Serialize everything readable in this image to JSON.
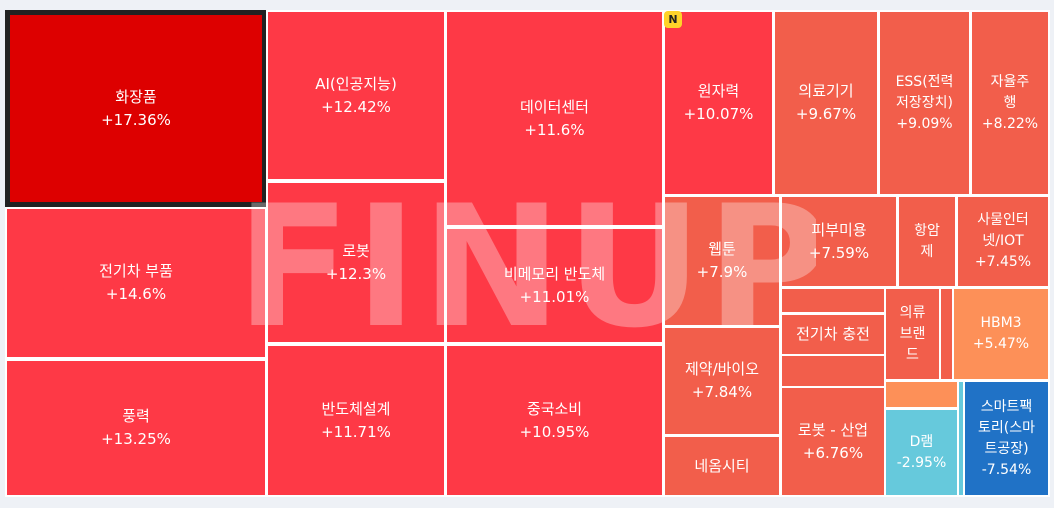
{
  "chart_data": {
    "type": "treemap",
    "colors": {
      "strong_up": "#dd0000",
      "up": "#fe3946",
      "mid_up": "#f25e4b",
      "low_up": "#fd9058",
      "light_down": "#66c9dc",
      "down": "#2072c6"
    },
    "tiles": [
      {
        "name": "화장품",
        "value": "+17.36%",
        "change": 17.36,
        "color": "strong_up",
        "selected": true
      },
      {
        "name": "전기차 부품",
        "value": "+14.6%",
        "change": 14.6,
        "color": "up"
      },
      {
        "name": "풍력",
        "value": "+13.25%",
        "change": 13.25,
        "color": "up"
      },
      {
        "name": "AI(인공지능)",
        "value": "+12.42%",
        "change": 12.42,
        "color": "up"
      },
      {
        "name": "로봇",
        "value": "+12.3%",
        "change": 12.3,
        "color": "up"
      },
      {
        "name": "반도체설계",
        "value": "+11.71%",
        "change": 11.71,
        "color": "up"
      },
      {
        "name": "데이터센터",
        "value": "+11.6%",
        "change": 11.6,
        "color": "up"
      },
      {
        "name": "비메모리 반도체",
        "value": "+11.01%",
        "change": 11.01,
        "color": "up"
      },
      {
        "name": "중국소비",
        "value": "+10.95%",
        "change": 10.95,
        "color": "up"
      },
      {
        "name": "원자력",
        "value": "+10.07%",
        "change": 10.07,
        "color": "up",
        "badge": "N"
      },
      {
        "name": "의료기기",
        "value": "+9.67%",
        "change": 9.67,
        "color": "mid_up"
      },
      {
        "name": "ESS(전력\n저장장치)",
        "value": "+9.09%",
        "change": 9.09,
        "color": "mid_up"
      },
      {
        "name": "자율주\n행",
        "value": "+8.22%",
        "change": 8.22,
        "color": "mid_up"
      },
      {
        "name": "웹툰",
        "value": "+7.9%",
        "change": 7.9,
        "color": "mid_up"
      },
      {
        "name": "피부미용",
        "value": "+7.59%",
        "change": 7.59,
        "color": "mid_up"
      },
      {
        "name": "항암\n제",
        "value": "",
        "color": "mid_up"
      },
      {
        "name": "사물인터\n넷/IOT",
        "value": "+7.45%",
        "change": 7.45,
        "color": "mid_up"
      },
      {
        "name": "제약/바이오",
        "value": "+7.84%",
        "change": 7.84,
        "color": "mid_up"
      },
      {
        "name": "",
        "value": "",
        "color": "mid_up"
      },
      {
        "name": "전기차 충전",
        "value": "",
        "color": "mid_up"
      },
      {
        "name": "의류\n브랜\n드",
        "value": "",
        "color": "mid_up"
      },
      {
        "name": "",
        "value": "",
        "color": "mid_up"
      },
      {
        "name": "HBM3",
        "value": "+5.47%",
        "change": 5.47,
        "color": "low_up"
      },
      {
        "name": "",
        "value": "",
        "color": "mid_up"
      },
      {
        "name": "로봇 - 산업",
        "value": "+6.76%",
        "change": 6.76,
        "color": "mid_up"
      },
      {
        "name": "",
        "value": "",
        "color": "low_up"
      },
      {
        "name": "D램",
        "value": "-2.95%",
        "change": -2.95,
        "color": "light_down"
      },
      {
        "name": "",
        "value": "",
        "color": "light_down"
      },
      {
        "name": "스마트팩\n토리(스마\n트공장)",
        "value": "-7.54%",
        "change": -7.54,
        "color": "down"
      },
      {
        "name": "네옴시티",
        "value": "",
        "color": "mid_up"
      }
    ]
  },
  "watermark": "FINUP"
}
